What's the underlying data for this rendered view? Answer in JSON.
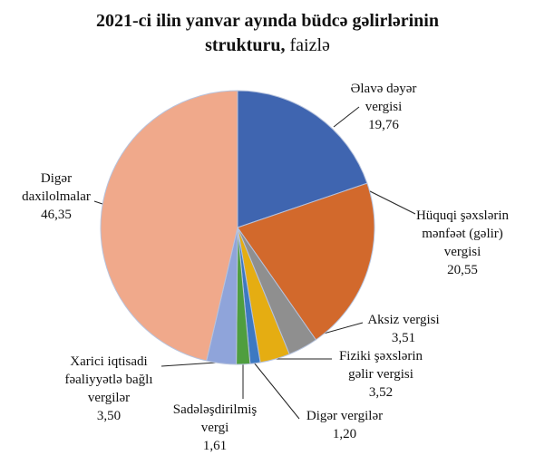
{
  "chart_data": {
    "type": "pie",
    "title": "2021-ci ilin yanvar  ayında büdcə gəlirlərinin strukturu,",
    "subtitle": "faizlə",
    "categories": [
      "Əlavə dəyər\nvergisi",
      "Hüquqi şəxslərin\nmənfəət (gəlir)\nvergisi",
      "Aksiz vergisi",
      "Fiziki şəxslərin\ngəlir vergisi",
      "Digər vergilər",
      "Sadələşdirilmiş\nvergi",
      "Xarici iqtisadi\nfəaliyyətlə bağlı\nvergilər",
      "Digər\ndaxilolmalar"
    ],
    "values": [
      19.76,
      20.55,
      3.51,
      3.52,
      1.2,
      1.61,
      3.5,
      46.35
    ],
    "value_labels": [
      "19,76",
      "20,55",
      "3,51",
      "3,52",
      "1,20",
      "1,61",
      "3,50",
      "46,35"
    ],
    "colors": [
      "#3f65b0",
      "#d2692c",
      "#8f8f8f",
      "#e5ad12",
      "#3d79c2",
      "#4f9e3f",
      "#8fa4da",
      "#f0a98b"
    ]
  }
}
